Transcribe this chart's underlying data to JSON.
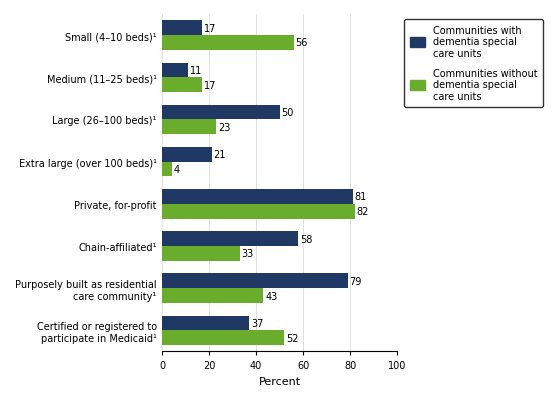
{
  "categories": [
    "Small (4–10 beds)¹",
    "Medium (11–25 beds)¹",
    "Large (26–100 beds)¹",
    "Extra large (over 100 beds)¹",
    "Private, for-profit",
    "Chain-affiliated¹",
    "Purposely built as residential\ncare community¹",
    "Certified or registered to\nparticipate in Medicaid¹"
  ],
  "with_dcu": [
    17,
    11,
    50,
    21,
    81,
    58,
    79,
    37
  ],
  "without_dcu": [
    56,
    17,
    23,
    4,
    82,
    33,
    43,
    52
  ],
  "color_with": "#1F3864",
  "color_without": "#6AAD2D",
  "xlabel": "Percent",
  "xlim": [
    0,
    100
  ],
  "xticks": [
    0,
    20,
    40,
    60,
    80,
    100
  ],
  "legend_with": "Communities with\ndementia special\ncare units",
  "legend_without": "Communities without\ndementia special\ncare units",
  "bar_height": 0.35,
  "figsize": [
    5.6,
    4.02
  ],
  "dpi": 100,
  "label_fontsize": 7,
  "tick_fontsize": 7,
  "legend_fontsize": 7,
  "xlabel_fontsize": 8
}
